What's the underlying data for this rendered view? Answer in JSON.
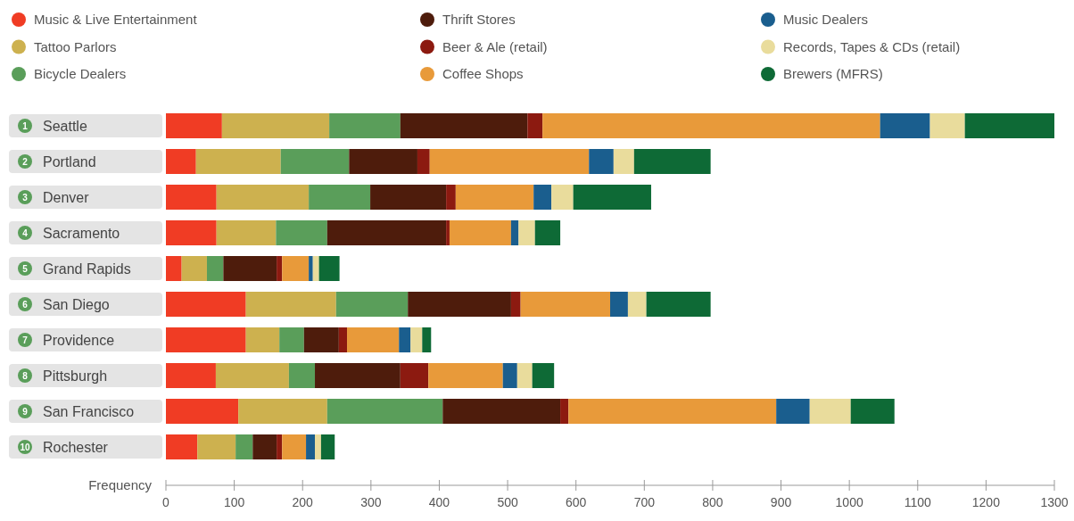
{
  "chart_data": {
    "type": "bar",
    "orientation": "horizontal",
    "stacked": true,
    "xlabel": "Frequency",
    "legend": "top",
    "grid": false,
    "categories": [
      "Seattle",
      "Portland",
      "Denver",
      "Sacramento",
      "Grand Rapids",
      "San Diego",
      "Providence",
      "Pittsburgh",
      "San Francisco",
      "Rochester"
    ],
    "annotations": [
      "1",
      "2",
      "3",
      "4",
      "5",
      "6",
      "7",
      "8",
      "9",
      "10"
    ],
    "xlim": [
      0,
      1300
    ],
    "xticks": [
      0,
      100,
      200,
      300,
      400,
      500,
      600,
      700,
      800,
      900,
      1000,
      1100,
      1200,
      1300
    ],
    "series": [
      {
        "name": "Music & Live Entertainment",
        "color": "#f03c24",
        "values": [
          82,
          44,
          74,
          74,
          23,
          117,
          117,
          73,
          106,
          46
        ]
      },
      {
        "name": "Tattoo Parlors",
        "color": "#cdb14f",
        "values": [
          157,
          124,
          135,
          87,
          37,
          132,
          49,
          107,
          130,
          56
        ]
      },
      {
        "name": "Bicycle Dealers",
        "color": "#5a9e5a",
        "values": [
          104,
          100,
          90,
          75,
          24,
          105,
          36,
          38,
          169,
          25
        ]
      },
      {
        "name": "Thrift Stores",
        "color": "#4e1c0c",
        "values": [
          186,
          100,
          111,
          174,
          78,
          151,
          51,
          125,
          172,
          35
        ]
      },
      {
        "name": "Beer & Ale (retail)",
        "color": "#8c1a10",
        "values": [
          22,
          18,
          14,
          5,
          8,
          14,
          12,
          41,
          12,
          8
        ]
      },
      {
        "name": "Coffee Shops",
        "color": "#e89a3a",
        "values": [
          494,
          233,
          114,
          90,
          39,
          131,
          76,
          109,
          304,
          35
        ]
      },
      {
        "name": "Music Dealers",
        "color": "#1a5e8e",
        "values": [
          73,
          36,
          26,
          11,
          6,
          26,
          17,
          21,
          49,
          13
        ]
      },
      {
        "name": "Records, Tapes & CDs (retail)",
        "color": "#e9dc9c",
        "values": [
          51,
          30,
          32,
          24,
          9,
          27,
          17,
          22,
          60,
          9
        ]
      },
      {
        "name": "Brewers (MFRS)",
        "color": "#0e6a36",
        "values": [
          131,
          112,
          114,
          37,
          30,
          94,
          13,
          32,
          64,
          20
        ]
      }
    ]
  }
}
